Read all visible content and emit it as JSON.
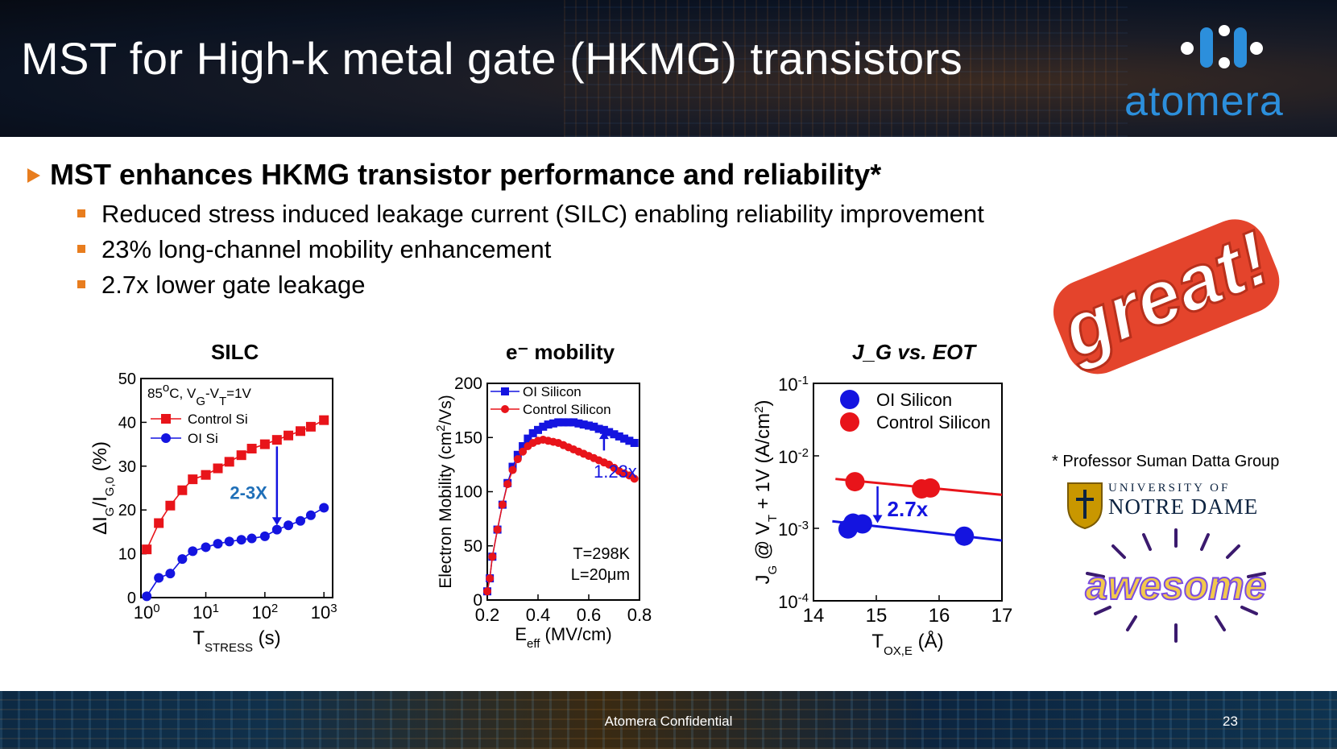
{
  "slide": {
    "title": "MST for High-k metal gate (HKMG) transistors",
    "logo": "atomera",
    "bullet_main": "MST enhances HKMG transistor performance and reliability*",
    "sub_bullets": [
      "Reduced stress induced leakage current (SILC) enabling reliability improvement",
      "23% long-channel mobility enhancement",
      "2.7x lower gate leakage"
    ],
    "credit": "* Professor Suman Datta Group",
    "nd_line1": "UNIVERSITY OF",
    "nd_line2": "NOTRE DAME",
    "sticker_great": "great!",
    "sticker_awesome": "awesome",
    "footer": "Atomera Confidential",
    "page": "23"
  },
  "colors": {
    "accent": "#e87d1e",
    "red": "#e8141a",
    "blue": "#1414e0",
    "annot": "#1f6fb8",
    "logo": "#2c8fdc"
  },
  "chart_data": [
    {
      "type": "line",
      "title": "SILC",
      "xlabel": "T_STRESS (s)",
      "ylabel": "ΔI_G/I_G,0 (%)",
      "xscale": "log",
      "xlim": [
        1,
        1000
      ],
      "ylim": [
        0,
        50
      ],
      "xticks": [
        "10^0",
        "10^1",
        "10^2",
        "10^3"
      ],
      "yticks": [
        0,
        10,
        20,
        30,
        40,
        50
      ],
      "legend_title": "85°C, V_G-V_T=1V",
      "annotation": "2-3X",
      "series": [
        {
          "name": "Control Si",
          "color": "#e8141a",
          "marker": "square",
          "x": [
            1,
            1.6,
            2.5,
            4,
            6,
            10,
            16,
            25,
            40,
            60,
            100,
            160,
            250,
            400,
            600,
            1000
          ],
          "y": [
            11,
            17,
            21,
            24.5,
            27,
            28,
            29.5,
            31,
            32.5,
            34,
            35,
            36,
            37,
            38,
            39,
            40.5
          ]
        },
        {
          "name": "OI Si",
          "color": "#1414e0",
          "marker": "circle",
          "x": [
            1,
            1.6,
            2.5,
            4,
            6,
            10,
            16,
            25,
            40,
            60,
            100,
            160,
            250,
            400,
            600,
            1000
          ],
          "y": [
            0.3,
            4.5,
            5.5,
            8.8,
            10.6,
            11.5,
            12.3,
            12.8,
            13.2,
            13.5,
            14,
            15.5,
            16.5,
            17.5,
            18.8,
            20.5
          ]
        }
      ]
    },
    {
      "type": "line",
      "title": "e⁻ mobility",
      "xlabel": "E_eff (MV/cm)",
      "ylabel": "Electron Mobility (cm²/Vs)",
      "xlim": [
        0.2,
        0.8
      ],
      "ylim": [
        0,
        200
      ],
      "xticks": [
        "0.2",
        "0.4",
        "0.6",
        "0.8"
      ],
      "yticks": [
        "0",
        "50",
        "100",
        "150",
        "200"
      ],
      "annotation": "1.23x",
      "conditions": [
        "T=298K",
        "L=20μm"
      ],
      "series": [
        {
          "name": "OI Silicon",
          "color": "#1414e0",
          "marker": "square",
          "x": [
            0.2,
            0.21,
            0.22,
            0.24,
            0.26,
            0.28,
            0.3,
            0.32,
            0.34,
            0.36,
            0.38,
            0.4,
            0.42,
            0.44,
            0.46,
            0.48,
            0.5,
            0.52,
            0.54,
            0.56,
            0.58,
            0.6,
            0.62,
            0.64,
            0.66,
            0.68,
            0.7,
            0.72,
            0.74,
            0.76,
            0.78
          ],
          "y": [
            8,
            20,
            40,
            65,
            88,
            108,
            123,
            134,
            142,
            149,
            154,
            157,
            160,
            162,
            163,
            164,
            164,
            164,
            164,
            163,
            162,
            161,
            160,
            158,
            157,
            155,
            153,
            151,
            149,
            147,
            145
          ]
        },
        {
          "name": "Control Silicon",
          "color": "#e8141a",
          "marker": "circle",
          "x": [
            0.2,
            0.21,
            0.22,
            0.24,
            0.26,
            0.28,
            0.3,
            0.32,
            0.34,
            0.36,
            0.38,
            0.4,
            0.42,
            0.44,
            0.46,
            0.48,
            0.5,
            0.52,
            0.54,
            0.56,
            0.58,
            0.6,
            0.62,
            0.64,
            0.66,
            0.68,
            0.7,
            0.72,
            0.74,
            0.76,
            0.78
          ],
          "y": [
            8,
            20,
            40,
            65,
            88,
            107,
            120,
            130,
            137,
            142,
            145,
            147,
            148,
            147,
            146,
            145,
            143,
            141,
            139,
            137,
            135,
            133,
            131,
            129,
            127,
            125,
            122,
            119,
            117,
            115,
            112
          ]
        }
      ]
    },
    {
      "type": "scatter",
      "title": "J_G vs. EOT",
      "xlabel": "T_OX,E (Å)",
      "ylabel": "J_G @ V_T + 1V (A/cm²)",
      "yscale": "log",
      "xlim": [
        14,
        17
      ],
      "ylim": [
        0.0001,
        0.1
      ],
      "xticks": [
        "14",
        "15",
        "16",
        "17"
      ],
      "yticks": [
        "10^-1",
        "10^-2",
        "10^-3",
        "10^-4"
      ],
      "annotation": "2.7x",
      "series": [
        {
          "name": "OI Silicon",
          "color": "#1414e0",
          "marker": "circle",
          "x": [
            14.55,
            14.63,
            14.78,
            16.4
          ],
          "y": [
            0.00098,
            0.00118,
            0.00115,
            0.00078
          ],
          "fit": {
            "x": [
              14.3,
              17
            ],
            "y": [
              0.00125,
              0.00068
            ]
          }
        },
        {
          "name": "Control Silicon",
          "color": "#e8141a",
          "marker": "circle",
          "x": [
            14.66,
            15.72,
            15.86
          ],
          "y": [
            0.0044,
            0.0035,
            0.0036
          ],
          "fit": {
            "x": [
              14.35,
              17
            ],
            "y": [
              0.0048,
              0.0029
            ]
          }
        }
      ]
    }
  ]
}
